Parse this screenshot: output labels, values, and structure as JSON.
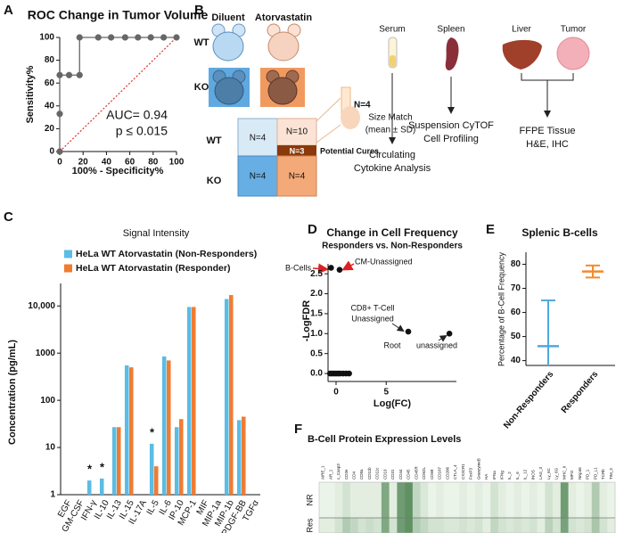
{
  "panel_labels": [
    "A",
    "B",
    "C",
    "D",
    "E",
    "F"
  ],
  "diagram": {
    "columns": [
      "Diluent",
      "Atorvastatin"
    ],
    "mouse_rows": [
      "WT",
      "KO"
    ],
    "grid_rows": [
      "WT",
      "KO"
    ],
    "cells": [
      "N=4",
      "N=10",
      "N=3",
      "N=4",
      "N=4"
    ],
    "cures": "Potential Cures",
    "size_match": {
      "n": "N=4",
      "lines": [
        "Size Match",
        "(mean ± SD)"
      ]
    },
    "samples": [
      "Serum",
      "Spleen",
      "Liver",
      "Tumor"
    ],
    "analyses": [
      [
        "Circulating",
        "Cytokine Analysis"
      ],
      [
        "Suspension CyTOF",
        "Cell Profiling"
      ],
      [
        "FFPE Tissue",
        "H&E, IHC"
      ]
    ]
  },
  "chart_data": [
    {
      "type": "line",
      "title": "ROC Change in  Tumor Volume",
      "xlabel": "100% - Specificity%",
      "ylabel": "Sensitivity%",
      "x": [
        0,
        0,
        0,
        8,
        17,
        17,
        33,
        44,
        56,
        67,
        78,
        89,
        100
      ],
      "values": [
        0,
        33,
        67,
        67,
        67,
        100,
        100,
        100,
        100,
        100,
        100,
        100,
        100
      ],
      "color": "#666666",
      "reference_line_color": "#e0302a",
      "xlim": [
        0,
        100
      ],
      "ylim": [
        0,
        100
      ],
      "xticks": [
        0,
        20,
        40,
        60,
        80,
        100
      ],
      "yticks": [
        0,
        20,
        40,
        60,
        80,
        100
      ],
      "annotations": [
        "AUC= 0.94",
        "p ≤ 0.015"
      ]
    },
    {
      "type": "bar",
      "title": "Signal Intensity",
      "ylabel": "Concentration (pg/mL)",
      "log_scale": true,
      "legend": "upper left",
      "categories": [
        "EGF",
        "GM-CSF",
        "IFN-γ",
        "IL-10",
        "IL-13",
        "IL-15",
        "IL-17A",
        "IL-5",
        "IL-6",
        "IP-10",
        "MCP-1",
        "MIF",
        "MIP-1a",
        "MIP-1b",
        "PDGF-BB",
        "TGFα"
      ],
      "series": [
        {
          "name": "HeLa WT Atorvastatin (Non-Responders)",
          "color": "#5bbce4",
          "values": [
            null,
            null,
            2,
            2.2,
            27,
            550,
            null,
            12,
            850,
            27,
            9500,
            null,
            null,
            14000,
            38,
            null
          ]
        },
        {
          "name": "HeLa WT Atorvastatin (Responder)",
          "color": "#f07c32",
          "values": [
            null,
            null,
            null,
            null,
            27,
            500,
            null,
            4,
            700,
            40,
            9500,
            null,
            null,
            17000,
            45,
            null
          ]
        }
      ],
      "ylim": [
        1,
        30000
      ],
      "yticks": [
        1,
        10,
        100,
        1000,
        {
          "value": 10000,
          "label": "10,000"
        }
      ],
      "annotations": [
        {
          "text": "*",
          "category": "IFN-γ"
        },
        {
          "text": "*",
          "category": "IL-10"
        },
        {
          "text": "*",
          "category": "IL-5"
        }
      ]
    },
    {
      "type": "scatter",
      "title": "Change in Cell Frequency",
      "subtitle": "Responders vs. Non-Responders",
      "xlabel": "Log(FC)",
      "ylabel": "-LogFDR",
      "x": [
        -0.5,
        0.35,
        7.2,
        11.3,
        -0.6,
        -0.4,
        -0.2,
        0,
        0.2,
        0.4,
        0.7,
        1.0,
        1.3
      ],
      "values": [
        2.65,
        2.6,
        1.05,
        1.0,
        0,
        0,
        0,
        0,
        0,
        0,
        0,
        0,
        0
      ],
      "point_labels": [
        "B-Cells",
        "CM-Unassigned",
        [
          "CD8+ T-Cell",
          "Unassigned"
        ],
        "unassigned",
        null,
        null,
        null,
        null,
        null,
        null,
        null,
        null,
        null
      ],
      "annotations": [
        "Root"
      ],
      "color": "#111111",
      "xlim": [
        -0.8,
        12
      ],
      "ylim": [
        -0.2,
        2.75
      ],
      "xticks": [
        0,
        5
      ],
      "yticks": [
        {
          "value": 0,
          "label": "0.0"
        },
        {
          "value": 0.5,
          "label": "0.5"
        },
        {
          "value": 1,
          "label": "1.0"
        },
        {
          "value": 1.5,
          "label": "1.5"
        },
        {
          "value": 2,
          "label": "2.0"
        },
        {
          "value": 2.5,
          "label": "2.5"
        }
      ]
    },
    {
      "type": "errorbar",
      "title": "Splenic  B-cells",
      "ylabel": "Percentage of B-Cell Frequency",
      "categories": [
        "Non-Responders",
        "Responders"
      ],
      "values": [
        46,
        77
      ],
      "errors": [
        19,
        2.5
      ],
      "colors": [
        "#4fa8e0",
        "#f28a2e"
      ],
      "ylim": [
        38,
        85
      ],
      "yticks": [
        40,
        50,
        60,
        70,
        80
      ]
    },
    {
      "type": "heatmap",
      "title": "B-Cell Protein Expression Levels",
      "rows": [
        "NR",
        "Res"
      ],
      "columns": [
        "AIRE_1",
        "AR_1",
        "c_Casp3",
        "CD3e",
        "CD4",
        "CD8a",
        "CD11b",
        "CD11c",
        "CD19",
        "CD31",
        "CD44",
        "CD45",
        "CD45R",
        "CD62L",
        "CD68",
        "CD107",
        "CD206",
        "CTLA_4",
        "CX3CR1",
        "FoxP3",
        "GranzymeB",
        "HA",
        "IFNa",
        "IFNg",
        "IL_2",
        "IL_6",
        "IL_12",
        "iNOS",
        "LAG_3",
        "Ly_6C",
        "Ly_6G",
        "MHC_II",
        "MPO",
        "NKp46",
        "PD_1",
        "PD_L1",
        "TCRb",
        "TIM_3"
      ],
      "values": [
        [
          0.05,
          0.05,
          0.1,
          0.2,
          0.1,
          0.1,
          0.1,
          0.1,
          0.7,
          0.1,
          0.8,
          0.9,
          0.3,
          0.15,
          0.05,
          0.1,
          0.05,
          0.05,
          0.1,
          0.05,
          0.1,
          0.05,
          0.2,
          0.1,
          0.05,
          0.1,
          0.05,
          0.1,
          0.05,
          0.2,
          0.1,
          0.8,
          0.1,
          0.05,
          0.1,
          0.4,
          0.1,
          0.05
        ],
        [
          0.1,
          0.1,
          0.2,
          0.4,
          0.3,
          0.2,
          0.25,
          0.2,
          0.7,
          0.2,
          0.8,
          0.9,
          0.4,
          0.3,
          0.2,
          0.2,
          0.15,
          0.15,
          0.2,
          0.15,
          0.2,
          0.1,
          0.3,
          0.2,
          0.15,
          0.2,
          0.15,
          0.2,
          0.1,
          0.35,
          0.2,
          0.75,
          0.2,
          0.15,
          0.2,
          0.45,
          0.2,
          0.1
        ]
      ],
      "vlim": [
        0,
        1
      ],
      "colormap": [
        "#f3faf1",
        "#4f8553"
      ]
    }
  ]
}
